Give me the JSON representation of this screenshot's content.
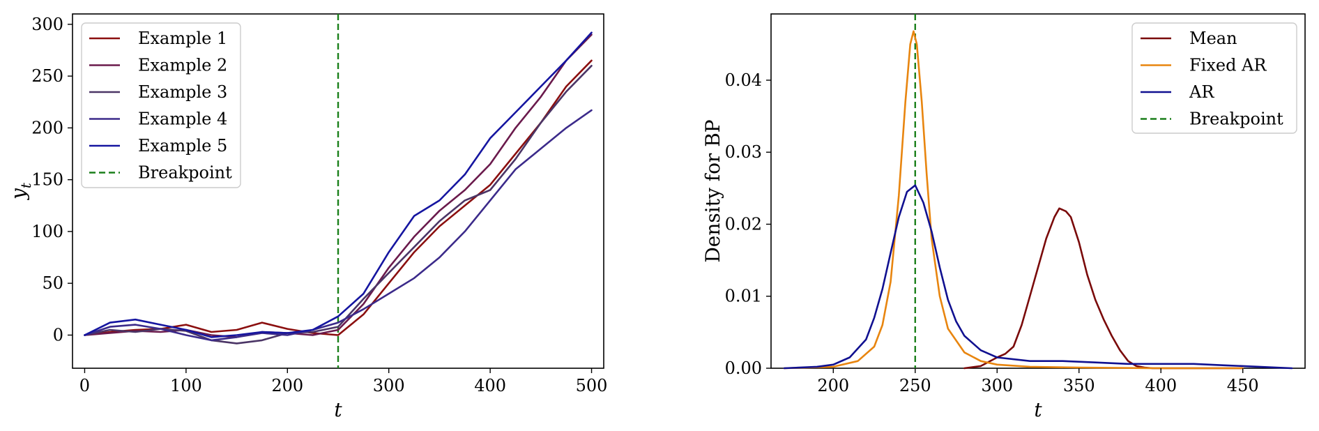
{
  "chart_data": [
    {
      "type": "line",
      "xlabel": "t",
      "ylabel": "y",
      "ylabel_sub": "t",
      "xlim": [
        -12,
        512
      ],
      "ylim": [
        -32,
        310
      ],
      "xticks": [
        0,
        100,
        200,
        300,
        400,
        500
      ],
      "yticks": [
        0,
        50,
        100,
        150,
        200,
        250,
        300
      ],
      "grid": false,
      "legend_position": "top-left",
      "breakpoint": {
        "name": "Breakpoint",
        "x": 250,
        "color": "#1a7f1a"
      },
      "series": [
        {
          "name": "Example 1",
          "color": "#8b0f0f",
          "x": [
            0,
            25,
            50,
            75,
            100,
            125,
            150,
            175,
            200,
            225,
            250,
            275,
            300,
            325,
            350,
            375,
            400,
            425,
            450,
            475,
            500
          ],
          "values": [
            0,
            3,
            5,
            6,
            10,
            3,
            5,
            12,
            6,
            2,
            0,
            20,
            50,
            80,
            105,
            125,
            145,
            175,
            205,
            240,
            265
          ]
        },
        {
          "name": "Example 2",
          "color": "#6a1a4c",
          "x": [
            0,
            25,
            50,
            75,
            100,
            125,
            150,
            175,
            200,
            225,
            250,
            275,
            300,
            325,
            350,
            375,
            400,
            425,
            450,
            475,
            500
          ],
          "values": [
            0,
            2,
            4,
            3,
            5,
            0,
            -2,
            3,
            2,
            0,
            5,
            30,
            65,
            95,
            120,
            140,
            165,
            200,
            230,
            265,
            290
          ]
        },
        {
          "name": "Example 3",
          "color": "#4b3566",
          "x": [
            0,
            25,
            50,
            75,
            100,
            125,
            150,
            175,
            200,
            225,
            250,
            275,
            300,
            325,
            350,
            375,
            400,
            425,
            450,
            475,
            500
          ],
          "values": [
            0,
            5,
            3,
            6,
            4,
            -5,
            -8,
            -5,
            2,
            3,
            8,
            35,
            60,
            85,
            110,
            130,
            140,
            170,
            205,
            235,
            260
          ]
        },
        {
          "name": "Example 4",
          "color": "#3b2a8a",
          "x": [
            0,
            25,
            50,
            75,
            100,
            125,
            150,
            175,
            200,
            225,
            250,
            275,
            300,
            325,
            350,
            375,
            400,
            425,
            450,
            475,
            500
          ],
          "values": [
            0,
            8,
            10,
            6,
            0,
            -5,
            -2,
            2,
            0,
            5,
            12,
            25,
            40,
            55,
            75,
            100,
            130,
            160,
            180,
            200,
            217
          ]
        },
        {
          "name": "Example 5",
          "color": "#1515a0",
          "x": [
            0,
            25,
            50,
            75,
            100,
            125,
            150,
            175,
            200,
            225,
            250,
            275,
            300,
            325,
            350,
            375,
            400,
            425,
            450,
            475,
            500
          ],
          "values": [
            0,
            12,
            15,
            10,
            5,
            -2,
            0,
            3,
            2,
            5,
            18,
            40,
            80,
            115,
            130,
            155,
            190,
            215,
            240,
            265,
            292
          ]
        }
      ]
    },
    {
      "type": "line",
      "xlabel": "t",
      "ylabel": "Density for BP",
      "xlim": [
        162,
        488
      ],
      "ylim": [
        0,
        0.0492
      ],
      "xticks": [
        200,
        250,
        300,
        350,
        400,
        450
      ],
      "yticks": [
        0.0,
        0.01,
        0.02,
        0.03,
        0.04
      ],
      "ytick_labels": [
        "0.00",
        "0.01",
        "0.02",
        "0.03",
        "0.04"
      ],
      "grid": false,
      "legend_position": "top-right",
      "breakpoint": {
        "name": "Breakpoint",
        "x": 250,
        "color": "#1a7f1a"
      },
      "series": [
        {
          "name": "Mean",
          "color": "#7a0a0a",
          "x": [
            280,
            290,
            300,
            305,
            310,
            315,
            320,
            325,
            330,
            335,
            338,
            342,
            345,
            350,
            355,
            360,
            365,
            370,
            375,
            380,
            385,
            390,
            395,
            400,
            420,
            450
          ],
          "values": [
            0,
            0.0003,
            0.0015,
            0.002,
            0.003,
            0.006,
            0.01,
            0.014,
            0.018,
            0.021,
            0.0222,
            0.0218,
            0.021,
            0.0175,
            0.013,
            0.0095,
            0.0068,
            0.0045,
            0.0025,
            0.001,
            0.0003,
            0.0001,
            0,
            0,
            0,
            0
          ]
        },
        {
          "name": "Fixed AR",
          "color": "#e8850f",
          "x": [
            170,
            200,
            215,
            225,
            230,
            235,
            240,
            244,
            247,
            249,
            251,
            254,
            257,
            260,
            265,
            270,
            280,
            290,
            300,
            320,
            350,
            400,
            450
          ],
          "values": [
            0,
            0.0002,
            0.001,
            0.003,
            0.006,
            0.012,
            0.024,
            0.037,
            0.045,
            0.0468,
            0.045,
            0.037,
            0.027,
            0.018,
            0.01,
            0.0055,
            0.0022,
            0.001,
            0.0005,
            0.0002,
            0.0001,
            0,
            0
          ]
        },
        {
          "name": "AR",
          "color": "#101090",
          "x": [
            170,
            190,
            200,
            210,
            220,
            225,
            230,
            235,
            240,
            245,
            250,
            255,
            260,
            265,
            270,
            275,
            280,
            290,
            300,
            320,
            340,
            360,
            380,
            400,
            420,
            440,
            460,
            480
          ],
          "values": [
            0,
            0.0002,
            0.0005,
            0.0015,
            0.004,
            0.007,
            0.011,
            0.016,
            0.021,
            0.0245,
            0.0254,
            0.023,
            0.019,
            0.014,
            0.0095,
            0.0065,
            0.0045,
            0.0025,
            0.0015,
            0.001,
            0.001,
            0.0008,
            0.0006,
            0.0006,
            0.0006,
            0.0004,
            0.0002,
            0
          ]
        }
      ]
    }
  ]
}
